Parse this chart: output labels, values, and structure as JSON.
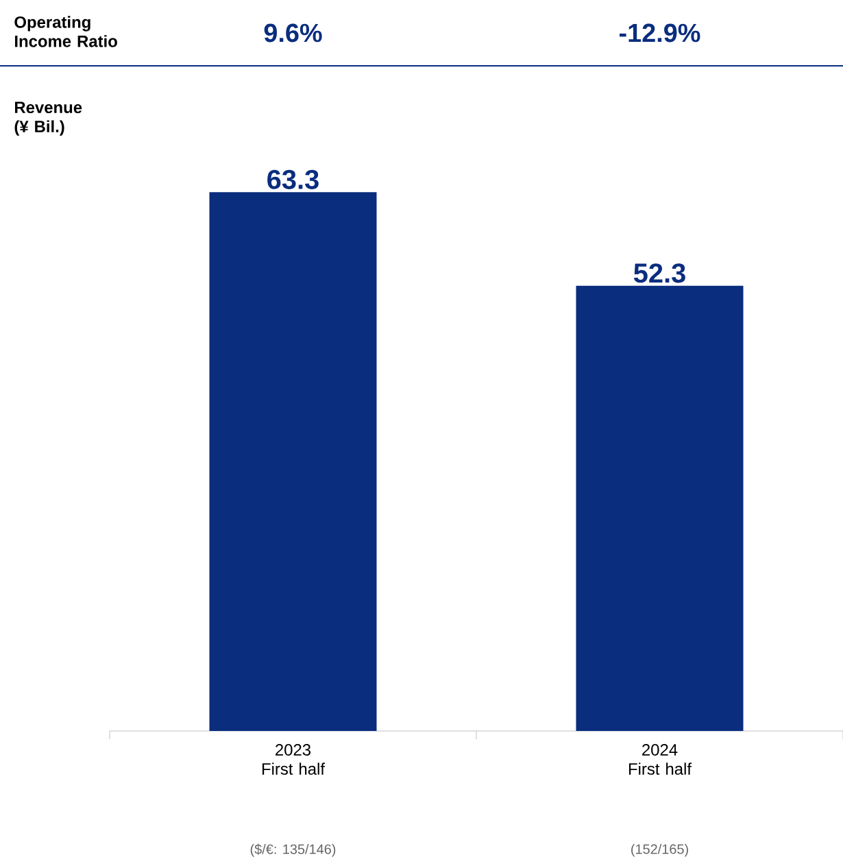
{
  "chart_data": {
    "type": "bar",
    "categories": [
      "2023 First half",
      "2024 First half"
    ],
    "values": [
      63.3,
      52.3
    ],
    "color": "#0a2d7e",
    "data_labels": true,
    "annotations": [
      "Operating Income Ratio",
      "9.6%",
      "-12.9%",
      "Revenue (¥ Bil.)",
      "($/€: 135/146)",
      "(152/165)"
    ]
  }
}
